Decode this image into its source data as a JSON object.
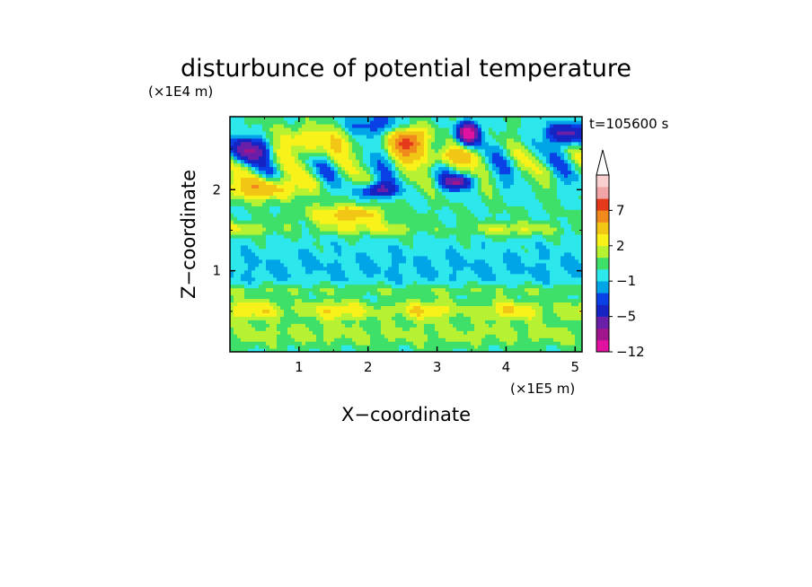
{
  "chart_data": {
    "type": "heatmap",
    "title": "disturbunce of potential temperature",
    "xlabel": "X−coordinate",
    "ylabel": "Z−coordinate",
    "x_unit": "(×1E5 m)",
    "y_unit": "(×1E4 m)",
    "time_label": "t=105600 s",
    "xlim": [
      0,
      5.1
    ],
    "ylim": [
      0,
      2.9
    ],
    "xticks": [
      {
        "value": 1,
        "label": "1"
      },
      {
        "value": 2,
        "label": "2"
      },
      {
        "value": 3,
        "label": "3"
      },
      {
        "value": 4,
        "label": "4"
      },
      {
        "value": 5,
        "label": "5"
      }
    ],
    "yticks": [
      {
        "value": 1,
        "label": "1"
      },
      {
        "value": 2,
        "label": "2"
      }
    ],
    "colorbar": {
      "levels": [
        -12,
        -9,
        -7,
        -5,
        -3,
        -2,
        -1,
        0,
        1,
        2,
        3,
        5,
        7,
        9,
        11
      ],
      "colors": [
        "#e0129f",
        "#a0148c",
        "#6a1fa8",
        "#1524c2",
        "#0a41e6",
        "#00a5e8",
        "#2ce7ec",
        "#3fe06a",
        "#b6f232",
        "#f8f21a",
        "#f2c614",
        "#f08a1d",
        "#e5391b",
        "#f2a5a6",
        "#f9cfcf"
      ],
      "labels": [
        {
          "value": -12,
          "label": "−12"
        },
        {
          "value": -5,
          "label": "−5"
        },
        {
          "value": -1,
          "label": "−1"
        },
        {
          "value": 2,
          "label": "2"
        },
        {
          "value": 7,
          "label": "7"
        }
      ]
    },
    "field_features": [
      {
        "x": 2.6,
        "z": 2.6,
        "value": 8
      },
      {
        "x": 3.45,
        "z": 2.7,
        "value": -9
      },
      {
        "x": 0.3,
        "z": 2.5,
        "value": -4
      },
      {
        "x": 2.15,
        "z": 2.0,
        "value": -4
      },
      {
        "x": 3.3,
        "z": 2.1,
        "value": -4
      },
      {
        "x": 4.9,
        "z": 2.7,
        "value": -4
      },
      {
        "x": 2.5,
        "z": 1.35,
        "value": -1
      },
      {
        "x": 0.5,
        "z": 2.0,
        "value": 4
      },
      {
        "x": 1.7,
        "z": 1.65,
        "value": 3
      }
    ]
  }
}
